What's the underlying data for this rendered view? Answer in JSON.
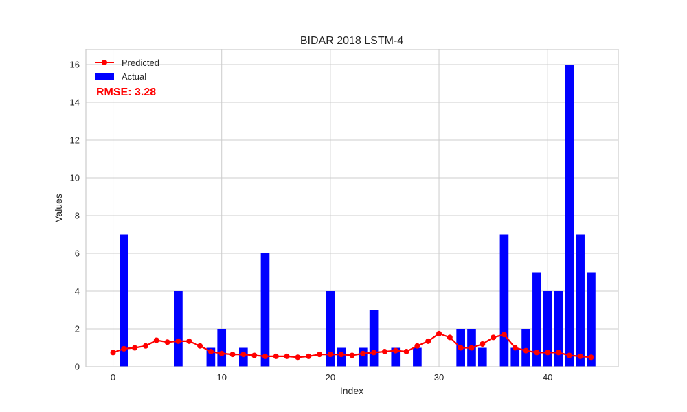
{
  "chart_data": {
    "type": "bar",
    "title": "BIDAR 2018 LSTM-4",
    "xlabel": "Index",
    "ylabel": "Values",
    "xlim": [
      -2.5,
      46.5
    ],
    "ylim": [
      0,
      16.8
    ],
    "xticks": [
      0,
      10,
      20,
      30,
      40
    ],
    "yticks": [
      0,
      2,
      4,
      6,
      8,
      10,
      12,
      14,
      16
    ],
    "grid": true,
    "legend_position": "top-left",
    "annotation": "RMSE: 3.28",
    "x": [
      0,
      1,
      2,
      3,
      4,
      5,
      6,
      7,
      8,
      9,
      10,
      11,
      12,
      13,
      14,
      15,
      16,
      17,
      18,
      19,
      20,
      21,
      22,
      23,
      24,
      25,
      26,
      27,
      28,
      29,
      30,
      31,
      32,
      33,
      34,
      35,
      36,
      37,
      38,
      39,
      40,
      41,
      42,
      43,
      44
    ],
    "series": [
      {
        "name": "Predicted",
        "kind": "line",
        "color": "#ff0000",
        "values": [
          0.75,
          0.95,
          1.0,
          1.1,
          1.4,
          1.3,
          1.35,
          1.35,
          1.1,
          0.8,
          0.7,
          0.65,
          0.65,
          0.6,
          0.55,
          0.55,
          0.55,
          0.5,
          0.55,
          0.65,
          0.65,
          0.65,
          0.6,
          0.7,
          0.75,
          0.8,
          0.85,
          0.8,
          1.1,
          1.35,
          1.75,
          1.55,
          1.0,
          1.0,
          1.2,
          1.55,
          1.7,
          1.0,
          0.85,
          0.75,
          0.75,
          0.75,
          0.6,
          0.55,
          0.5
        ]
      },
      {
        "name": "Actual",
        "kind": "bar",
        "color": "#0000ff",
        "values": [
          0,
          7,
          0,
          0,
          0,
          0,
          4,
          0,
          0,
          1,
          2,
          0,
          1,
          0,
          6,
          0,
          0,
          0,
          0,
          0,
          4,
          1,
          0,
          1,
          3,
          0,
          1,
          0,
          1,
          0,
          0,
          0,
          2,
          2,
          1,
          0,
          7,
          1,
          2,
          5,
          4,
          4,
          16,
          7,
          5
        ]
      }
    ]
  }
}
